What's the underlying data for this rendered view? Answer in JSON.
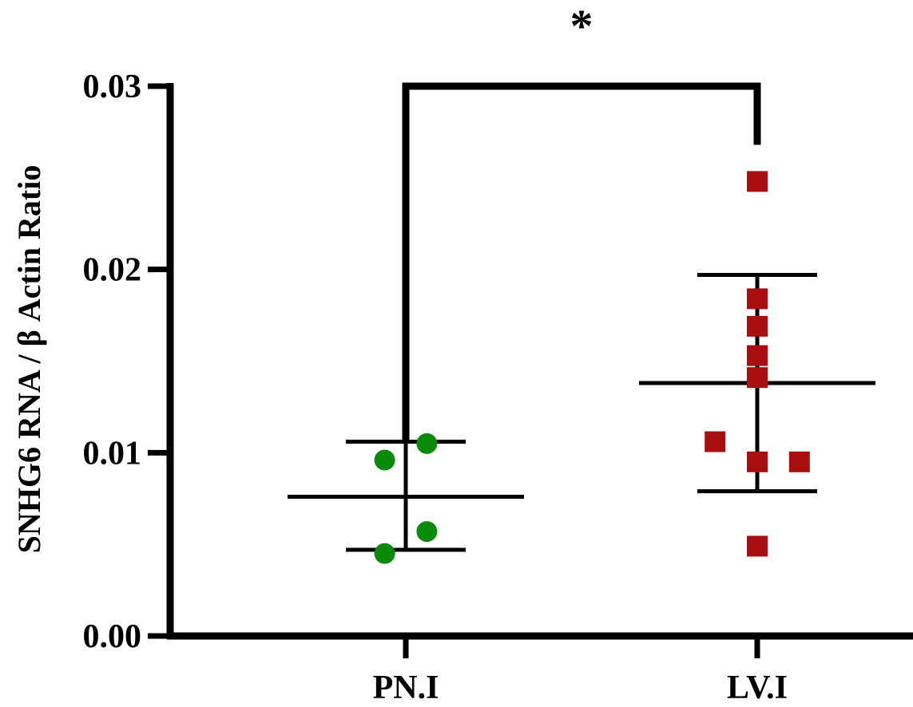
{
  "chart_data": {
    "type": "scatter",
    "title": "",
    "xlabel": "",
    "ylabel": "SNHG6 RNA / β Actin Ratio",
    "ylim": [
      0,
      0.03
    ],
    "yticks": [
      "0.00",
      "0.01",
      "0.02",
      "0.03"
    ],
    "ytick_values": [
      0,
      0.01,
      0.02,
      0.03
    ],
    "categories": [
      "PN.I",
      "LV.I"
    ],
    "series": [
      {
        "category": "PN.I",
        "marker": "circle",
        "color": "#0a8a0a",
        "points": [
          {
            "offset": -0.06,
            "y": 0.0096
          },
          {
            "offset": 0.06,
            "y": 0.0105
          },
          {
            "offset": 0.06,
            "y": 0.0057
          },
          {
            "offset": -0.06,
            "y": 0.0045
          }
        ],
        "mean": 0.0076,
        "error_low": 0.0047,
        "error_high": 0.0106
      },
      {
        "category": "LV.I",
        "marker": "square",
        "color": "#a80f0f",
        "points": [
          {
            "offset": 0.0,
            "y": 0.0248
          },
          {
            "offset": 0.0,
            "y": 0.0184
          },
          {
            "offset": 0.0,
            "y": 0.0169
          },
          {
            "offset": 0.0,
            "y": 0.0153
          },
          {
            "offset": 0.0,
            "y": 0.0141
          },
          {
            "offset": -0.12,
            "y": 0.0106
          },
          {
            "offset": 0.0,
            "y": 0.0095
          },
          {
            "offset": 0.12,
            "y": 0.0095
          },
          {
            "offset": 0.0,
            "y": 0.0049
          }
        ],
        "mean": 0.0138,
        "error_low": 0.0079,
        "error_high": 0.0197
      }
    ],
    "significance": {
      "label": "*",
      "from": "PN.I",
      "to": "LV.I",
      "y": 0.03,
      "left_drop_to": 0.0107,
      "right_drop_to": 0.0268
    }
  }
}
